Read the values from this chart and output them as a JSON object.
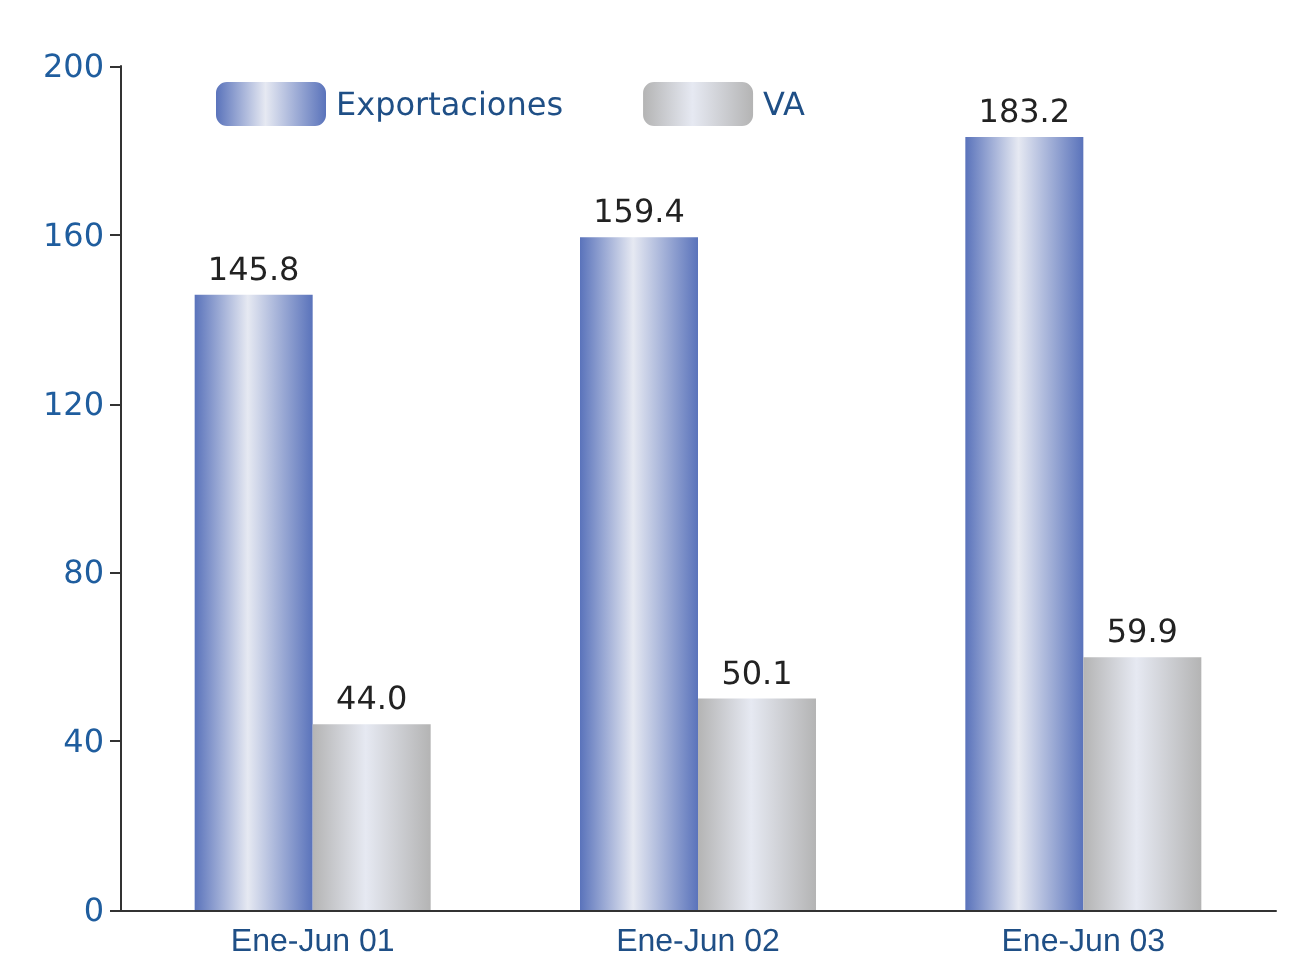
{
  "chart_data": {
    "type": "bar",
    "categories": [
      "Ene-Jun 01",
      "Ene-Jun 02",
      "Ene-Jun 03"
    ],
    "series": [
      {
        "name": "Exportaciones",
        "color": "#5a73bb",
        "values": [
          145.8,
          159.4,
          183.2
        ],
        "value_labels": [
          "145.8",
          "159.4",
          "183.2"
        ]
      },
      {
        "name": "VA",
        "color": "#b4b4b4",
        "values": [
          44.0,
          50.1,
          59.9
        ],
        "value_labels": [
          "44.0",
          "50.1",
          "59.9"
        ]
      }
    ],
    "ylim": [
      0,
      200
    ],
    "yticks": [
      0,
      40,
      80,
      120,
      160,
      200
    ],
    "grid": false,
    "legend": "top left"
  }
}
